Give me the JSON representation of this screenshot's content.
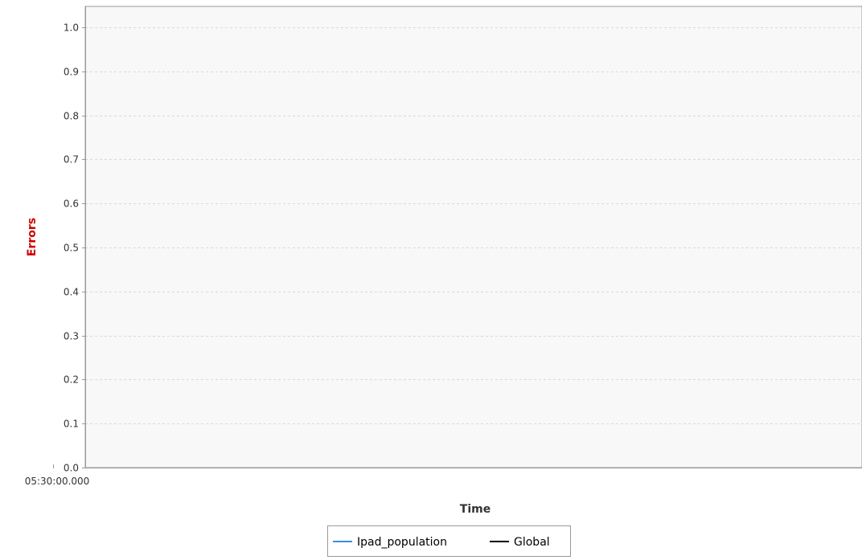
{
  "chart_data": {
    "type": "line",
    "title": "",
    "xlabel": "Time",
    "ylabel": "Errors",
    "x_ticks": [
      "05:30:00.000"
    ],
    "y_ticks": [
      "0.0",
      "0.1",
      "0.2",
      "0.3",
      "0.4",
      "0.5",
      "0.6",
      "0.7",
      "0.8",
      "0.9",
      "1.0"
    ],
    "ylim": [
      0.0,
      1.0
    ],
    "grid": true,
    "legend_position": "bottom",
    "series": [
      {
        "name": "Ipad_population",
        "color": "#3c8dd9",
        "values": []
      },
      {
        "name": "Global",
        "color": "#000000",
        "values": []
      }
    ],
    "colors": {
      "plot_background": "#f8f8f8",
      "gridline": "#d8d8d8",
      "axis_line": "#999999",
      "ylabel": "#cc0000"
    }
  }
}
